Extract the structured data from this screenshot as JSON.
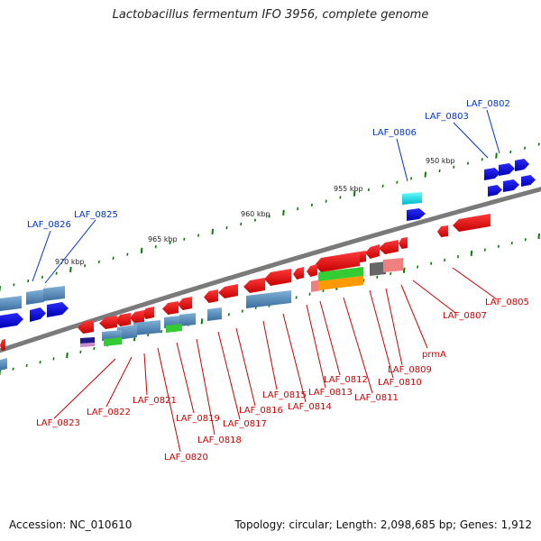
{
  "title": "Lactobacillus fermentum IFO 3956, complete genome",
  "footer": {
    "accession": "Accession: NC_010610",
    "summary": "Topology: circular; Length: 2,098,685 bp; Genes: 1,912"
  },
  "scale_labels": [
    "950 kbp",
    "955 kbp",
    "960 kbp",
    "965 kbp",
    "970 kbp"
  ],
  "colors": {
    "forward_label": "#0033cc",
    "reverse_label": "#cc0000",
    "backbone": "#808080"
  },
  "forward_genes": [
    "LAF_0802",
    "LAF_0803",
    "LAF_0806",
    "LAF_0825",
    "LAF_0826"
  ],
  "reverse_genes": [
    "LAF_0805",
    "LAF_0807",
    "prmA",
    "LAF_0809",
    "LAF_0810",
    "LAF_0811",
    "LAF_0812",
    "LAF_0813",
    "LAF_0814",
    "LAF_0815",
    "LAF_0816",
    "LAF_0817",
    "LAF_0818",
    "LAF_0819",
    "LAF_0820",
    "LAF_0821",
    "LAF_0822",
    "LAF_0823"
  ]
}
